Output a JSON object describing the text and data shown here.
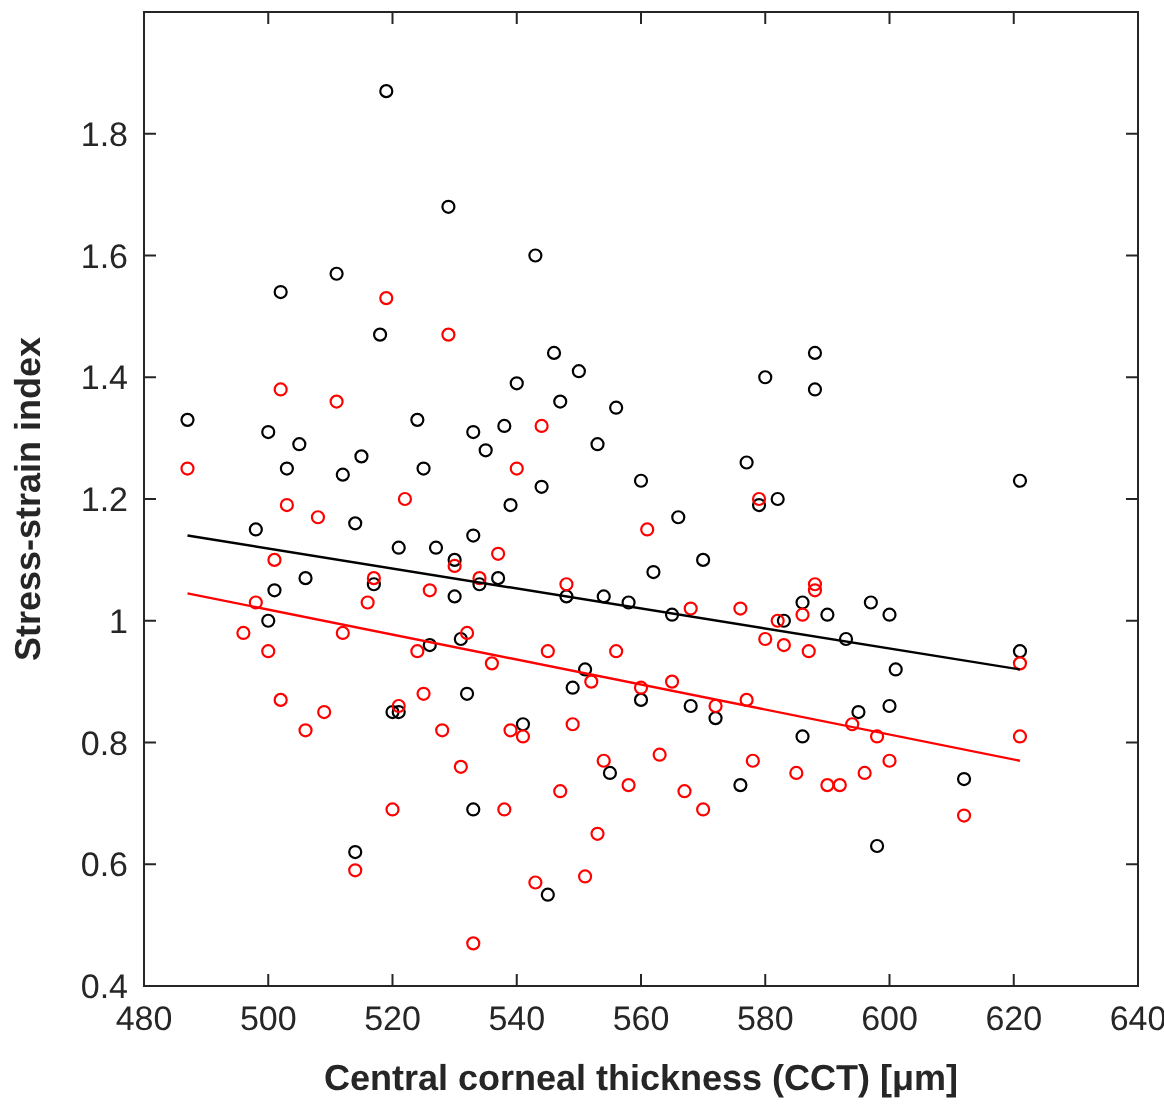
{
  "chart_data": {
    "type": "scatter",
    "xlabel": "Central corneal thickness (CCT) [μm]",
    "ylabel": "Stress-strain index",
    "xlim": [
      480,
      640
    ],
    "xticks": [
      480,
      500,
      520,
      540,
      560,
      580,
      600,
      620,
      640
    ],
    "ylim": [
      0.4,
      2.0
    ],
    "yticks": [
      0.4,
      0.6,
      0.8,
      1,
      1.2,
      1.4,
      1.6,
      1.8
    ],
    "grid": false,
    "marker": "circle",
    "series": [
      {
        "color": "#000000",
        "x": [
          487,
          500,
          502,
          498,
          501,
          500,
          503,
          505,
          506,
          511,
          512,
          514,
          515,
          517,
          518,
          519,
          521,
          521,
          524,
          525,
          527,
          529,
          530,
          530,
          533,
          533,
          532,
          533,
          534,
          535,
          537,
          538,
          539,
          540,
          541,
          543,
          544,
          546,
          547,
          548,
          549,
          550,
          551,
          553,
          554,
          555,
          556,
          558,
          560,
          560,
          562,
          565,
          566,
          568,
          570,
          572,
          576,
          577,
          579,
          580,
          582,
          583,
          586,
          586,
          588,
          588,
          590,
          593,
          595,
          597,
          598,
          600,
          600,
          601,
          612,
          621,
          621,
          514,
          520,
          545,
          526,
          531
        ],
        "values": [
          1.33,
          1.31,
          1.54,
          1.15,
          1.05,
          1.0,
          1.25,
          1.29,
          1.07,
          1.57,
          1.24,
          1.16,
          1.27,
          1.06,
          1.47,
          1.87,
          1.12,
          0.85,
          1.33,
          1.25,
          1.12,
          1.68,
          1.1,
          1.04,
          1.31,
          1.14,
          0.88,
          0.69,
          1.06,
          1.28,
          1.07,
          1.32,
          1.19,
          1.39,
          0.83,
          1.6,
          1.22,
          1.44,
          1.36,
          1.04,
          0.89,
          1.41,
          0.92,
          1.29,
          1.04,
          0.75,
          1.35,
          1.03,
          0.87,
          1.23,
          1.08,
          1.01,
          1.17,
          0.86,
          1.1,
          0.84,
          0.73,
          1.26,
          1.19,
          1.4,
          1.2,
          1.0,
          1.03,
          0.81,
          1.38,
          1.44,
          1.01,
          0.97,
          0.85,
          1.03,
          0.63,
          1.01,
          0.86,
          0.92,
          0.74,
          1.23,
          0.95,
          0.62,
          0.85,
          0.55,
          0.96,
          0.97
        ]
      },
      {
        "color": "#ff0000",
        "x": [
          487,
          496,
          498,
          501,
          502,
          503,
          500,
          502,
          506,
          508,
          511,
          512,
          514,
          516,
          517,
          519,
          520,
          521,
          522,
          524,
          525,
          528,
          529,
          530,
          531,
          532,
          533,
          534,
          536,
          537,
          538,
          539,
          540,
          541,
          543,
          544,
          545,
          547,
          548,
          549,
          551,
          552,
          553,
          554,
          556,
          558,
          560,
          561,
          563,
          565,
          567,
          568,
          570,
          572,
          576,
          577,
          578,
          579,
          580,
          582,
          583,
          585,
          586,
          587,
          588,
          588,
          590,
          592,
          594,
          596,
          598,
          600,
          612,
          621,
          621,
          509,
          526
        ],
        "values": [
          1.25,
          0.98,
          1.03,
          1.1,
          1.38,
          1.19,
          0.95,
          0.87,
          0.82,
          1.17,
          1.36,
          0.98,
          0.59,
          1.03,
          1.07,
          1.53,
          0.69,
          0.86,
          1.2,
          0.95,
          0.88,
          0.82,
          1.47,
          1.09,
          0.76,
          0.98,
          0.47,
          1.07,
          0.93,
          1.11,
          0.69,
          0.82,
          1.25,
          0.81,
          0.57,
          1.32,
          0.95,
          0.72,
          1.06,
          0.83,
          0.58,
          0.9,
          0.65,
          0.77,
          0.95,
          0.73,
          0.89,
          1.15,
          0.78,
          0.9,
          0.72,
          1.02,
          0.69,
          0.86,
          1.02,
          0.87,
          0.77,
          1.2,
          0.97,
          1.0,
          0.96,
          0.75,
          1.01,
          0.95,
          1.05,
          1.06,
          0.73,
          0.73,
          0.83,
          0.75,
          0.81,
          0.77,
          0.68,
          0.93,
          0.81,
          0.85,
          1.05
        ]
      },
      {
        "type": "line",
        "color": "#000000",
        "marker": "none",
        "x": [
          487,
          621
        ],
        "values": [
          1.14,
          0.92
        ]
      },
      {
        "type": "line",
        "color": "#ff0000",
        "marker": "none",
        "x": [
          487,
          621
        ],
        "values": [
          1.045,
          0.77
        ]
      }
    ]
  }
}
